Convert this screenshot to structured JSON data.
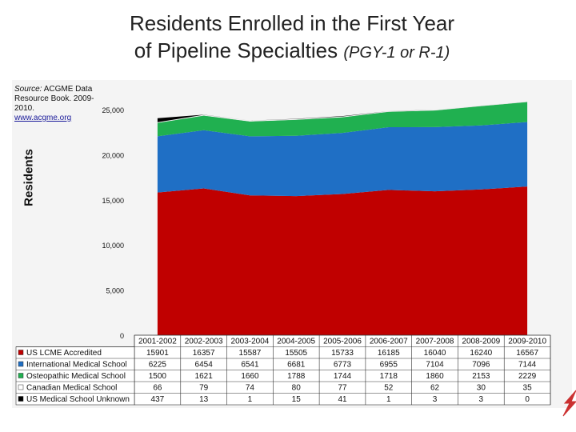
{
  "title": {
    "line1": "Residents Enrolled in the First Year",
    "line2": "of Pipeline Specialties",
    "line2_suffix": "(PGY-1 or R-1)"
  },
  "source": {
    "label": "Source:",
    "text": "ACGME Data Resource Book. 2009-2010.",
    "link": "www.acgme.org"
  },
  "chart_data": {
    "type": "area",
    "stacked": true,
    "ylabel": "Residents",
    "ylim": [
      0,
      25000
    ],
    "yticks": [
      "0",
      "5,000",
      "10,000",
      "15,000",
      "20,000",
      "25,000"
    ],
    "ytick_values": [
      0,
      5000,
      10000,
      15000,
      20000,
      25000
    ],
    "categories": [
      "2001-2002",
      "2002-2003",
      "2003-2004",
      "2004-2005",
      "2005-2006",
      "2006-2007",
      "2007-2008",
      "2008-2009",
      "2009-2010"
    ],
    "series": [
      {
        "name": "US LCME Accredited",
        "color": "#c00000",
        "values": [
          15901,
          16357,
          15587,
          15505,
          15733,
          16185,
          16040,
          16240,
          16567
        ]
      },
      {
        "name": "International Medical School",
        "color": "#1f6fc5",
        "values": [
          6225,
          6454,
          6541,
          6681,
          6773,
          6955,
          7104,
          7096,
          7144
        ]
      },
      {
        "name": "Osteopathic Medical School",
        "color": "#20b050",
        "values": [
          1500,
          1621,
          1660,
          1788,
          1744,
          1718,
          1860,
          2153,
          2229
        ]
      },
      {
        "name": "Canadian Medical School",
        "color": "#ffffff",
        "values": [
          66,
          79,
          74,
          80,
          77,
          52,
          62,
          30,
          35
        ]
      },
      {
        "name": "US Medical School Unknown",
        "color": "#000000",
        "values": [
          437,
          13,
          1,
          15,
          41,
          1,
          3,
          3,
          0
        ]
      }
    ],
    "grid": false,
    "legend": "data-table-left"
  }
}
